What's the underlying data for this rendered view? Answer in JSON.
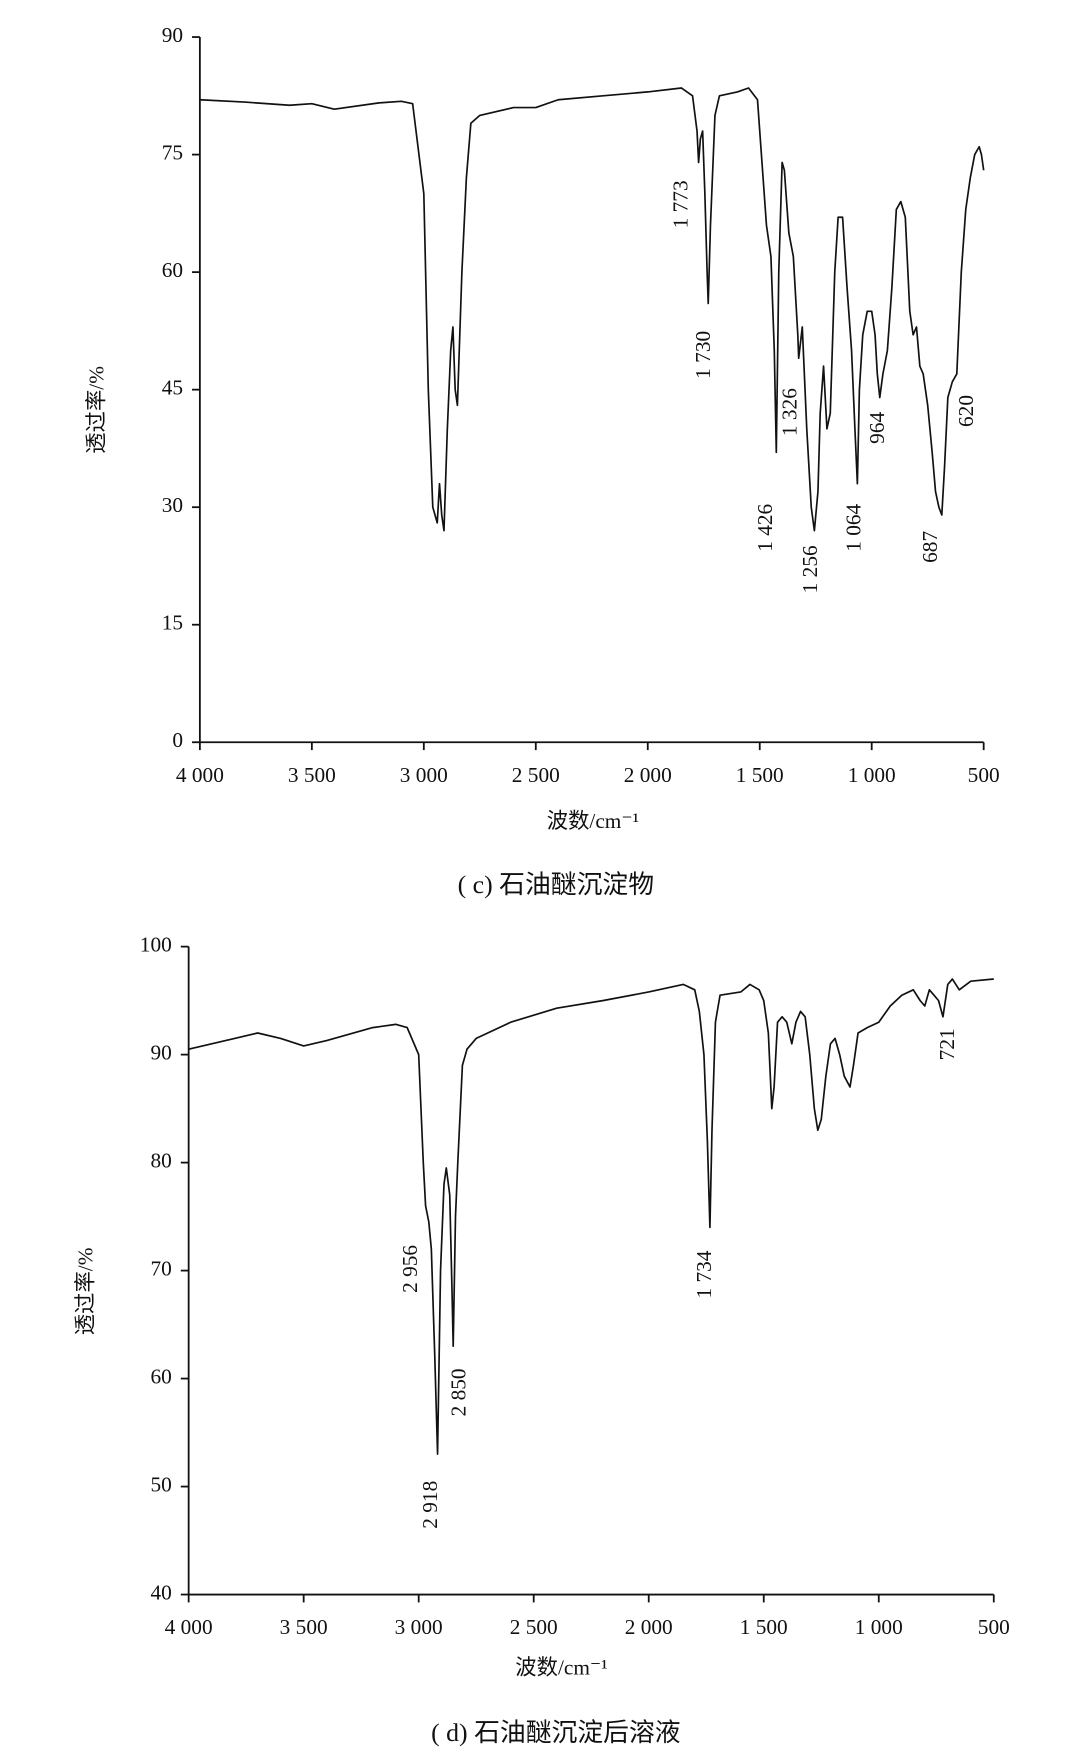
{
  "chart_data": [
    {
      "type": "line",
      "caption": "( c) 石油醚沉淀物",
      "xlabel": "波数/cm⁻¹",
      "ylabel": "透过率/%",
      "xlim": [
        4000,
        500
      ],
      "ylim": [
        0,
        90
      ],
      "xticks": [
        {
          "value": 4000,
          "label": "4 000"
        },
        {
          "value": 3500,
          "label": "3 500"
        },
        {
          "value": 3000,
          "label": "3 000"
        },
        {
          "value": 2500,
          "label": "2 500"
        },
        {
          "value": 2000,
          "label": "2 000"
        },
        {
          "value": 1500,
          "label": "1 500"
        },
        {
          "value": 1000,
          "label": "1 000"
        },
        500
      ],
      "yticks": [
        0,
        15,
        30,
        45,
        60,
        75,
        90
      ],
      "color": "#111111",
      "x": [
        4000,
        3800,
        3600,
        3500,
        3400,
        3200,
        3100,
        3050,
        3000,
        2980,
        2960,
        2940,
        2930,
        2920,
        2910,
        2895,
        2880,
        2870,
        2860,
        2850,
        2830,
        2810,
        2790,
        2750,
        2600,
        2500,
        2400,
        2200,
        2000,
        1850,
        1800,
        1780,
        1773,
        1765,
        1755,
        1745,
        1735,
        1730,
        1720,
        1700,
        1680,
        1600,
        1550,
        1510,
        1490,
        1470,
        1450,
        1435,
        1426,
        1415,
        1400,
        1390,
        1370,
        1350,
        1330,
        1326,
        1310,
        1290,
        1270,
        1256,
        1240,
        1230,
        1215,
        1200,
        1185,
        1165,
        1150,
        1130,
        1110,
        1090,
        1075,
        1064,
        1055,
        1040,
        1020,
        1000,
        985,
        975,
        964,
        950,
        930,
        910,
        890,
        870,
        850,
        830,
        815,
        800,
        785,
        770,
        750,
        730,
        715,
        700,
        687,
        675,
        660,
        640,
        620,
        600,
        580,
        560,
        540,
        520,
        510,
        500
      ],
      "values": [
        82,
        81.7,
        81.3,
        81.5,
        80.8,
        81.6,
        81.8,
        81.5,
        70,
        45,
        30,
        28,
        33,
        29,
        27,
        40,
        50,
        53,
        45,
        43,
        60,
        72,
        79,
        80,
        81,
        81,
        82,
        82.5,
        83,
        83.5,
        82.5,
        78,
        74,
        77,
        78,
        70,
        60,
        56,
        66,
        80,
        82.5,
        83,
        83.5,
        82,
        74,
        66,
        62,
        50,
        37,
        60,
        74,
        73,
        65,
        62,
        52,
        49,
        53,
        40,
        30,
        27,
        32,
        42,
        48,
        40,
        42,
        60,
        67,
        67,
        58,
        50,
        40,
        33,
        45,
        52,
        55,
        55,
        52,
        47,
        44,
        47,
        50,
        58,
        68,
        69,
        67,
        55,
        52,
        53,
        48,
        47,
        43,
        37,
        32,
        30,
        29,
        35,
        44,
        46,
        47,
        60,
        68,
        72,
        75,
        76,
        75,
        73
      ],
      "annotations": [
        "1 773",
        "1 730",
        "1 326",
        "1 426",
        "1 256",
        "1 064",
        "964",
        "687",
        "620"
      ]
    },
    {
      "type": "line",
      "caption": "( d) 石油醚沉淀后溶液",
      "xlabel": "波数/cm⁻¹",
      "ylabel": "透过率/%",
      "xlim": [
        4000,
        500
      ],
      "ylim": [
        40,
        100
      ],
      "xticks": [
        {
          "value": 4000,
          "label": "4 000"
        },
        {
          "value": 3500,
          "label": "3 500"
        },
        {
          "value": 3000,
          "label": "3 000"
        },
        {
          "value": 2500,
          "label": "2 500"
        },
        {
          "value": 2000,
          "label": "2 000"
        },
        {
          "value": 1500,
          "label": "1 500"
        },
        {
          "value": 1000,
          "label": "1 000"
        },
        500
      ],
      "yticks": [
        40,
        50,
        60,
        70,
        80,
        90,
        100
      ],
      "color": "#111111",
      "x": [
        4000,
        3800,
        3700,
        3600,
        3500,
        3400,
        3200,
        3100,
        3050,
        3000,
        2980,
        2970,
        2956,
        2945,
        2930,
        2918,
        2905,
        2890,
        2880,
        2865,
        2855,
        2850,
        2840,
        2830,
        2810,
        2790,
        2750,
        2600,
        2400,
        2200,
        2000,
        1850,
        1800,
        1780,
        1760,
        1745,
        1734,
        1725,
        1710,
        1690,
        1600,
        1560,
        1520,
        1500,
        1480,
        1465,
        1455,
        1440,
        1420,
        1400,
        1378,
        1360,
        1340,
        1320,
        1300,
        1280,
        1265,
        1250,
        1230,
        1210,
        1190,
        1170,
        1150,
        1125,
        1110,
        1090,
        1050,
        1000,
        950,
        900,
        850,
        820,
        800,
        780,
        760,
        740,
        721,
        700,
        680,
        650,
        600,
        500
      ],
      "values": [
        90.5,
        91.5,
        92,
        91.5,
        90.8,
        91.3,
        92.5,
        92.8,
        92.5,
        90,
        80,
        76,
        74.5,
        72,
        62,
        53,
        70,
        78,
        79.5,
        77,
        68,
        63,
        75,
        80,
        89,
        90.5,
        91.5,
        93,
        94.3,
        95,
        95.8,
        96.5,
        96,
        94,
        90,
        82,
        74,
        83,
        93,
        95.5,
        95.8,
        96.5,
        96,
        95,
        92,
        85,
        87,
        93,
        93.5,
        93,
        91,
        93,
        94,
        93.5,
        90,
        85,
        83,
        84,
        88,
        91,
        91.5,
        90,
        88,
        87,
        89,
        92,
        92.5,
        93,
        94.5,
        95.5,
        96,
        95,
        94.5,
        96,
        95.5,
        95,
        93.5,
        96.5,
        97,
        96,
        96.8,
        97
      ],
      "annotations": [
        "2 956",
        "2 918",
        "2 850",
        "1 734",
        "721"
      ]
    }
  ]
}
